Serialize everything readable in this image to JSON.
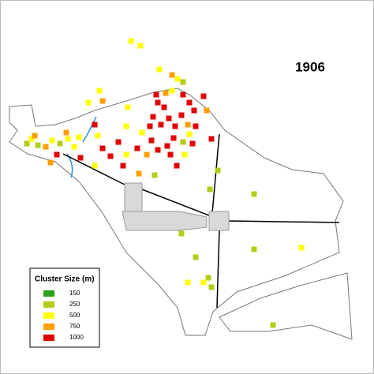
{
  "map": {
    "title": "1906",
    "legend": {
      "title": "Cluster Size (m)",
      "items": [
        {
          "label": 150,
          "color": "#2ca01c"
        },
        {
          "label": 250,
          "color": "#b5cc18"
        },
        {
          "label": 500,
          "color": "#ffff00"
        },
        {
          "label": 750,
          "color": "#ff9f00"
        },
        {
          "label": 1000,
          "color": "#e00000"
        }
      ]
    }
  }
}
